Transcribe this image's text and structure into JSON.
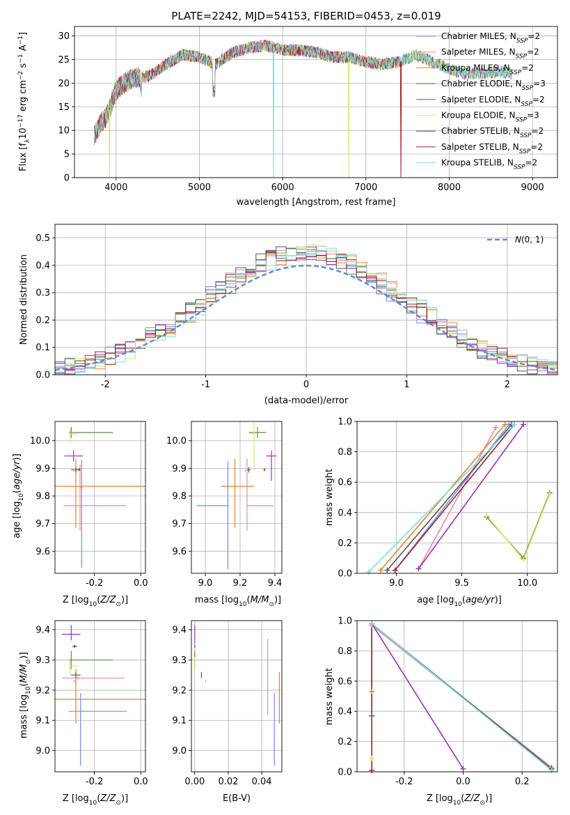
{
  "figure": {
    "title": "PLATE=2242, MJD=54153, FIBERID=0453, z=0.019"
  },
  "colors": {
    "Chabrier MILES": "#6f8fe8",
    "Salpeter MILES": "#e48ab0",
    "Kroupa MILES": "#e6822d",
    "Chabrier ELODIE": "#5b8c4f",
    "Salpeter ELODIE": "#9b30b8",
    "Kroupa ELODIE": "#d7e86a",
    "Chabrier STELIB": "#555555",
    "Salpeter STELIB": "#a01c24",
    "Kroupa STELIB": "#7fdcdc",
    "normal": "#5e8ed6"
  },
  "chart_data": [
    {
      "id": "spectrum",
      "type": "line",
      "title": "PLATE=2242, MJD=54153, FIBERID=0453, z=0.019",
      "xlabel": "wavelength [Angstrom, rest frame]",
      "ylabel": "Flux [f_λ 10^-17 erg cm^-2 s^-1 A^-1]",
      "xlim": [
        3500,
        9300
      ],
      "ylim": [
        0,
        32
      ],
      "xticks": [
        4000,
        5000,
        6000,
        7000,
        8000,
        9000
      ],
      "yticks": [
        0,
        5,
        10,
        15,
        20,
        25,
        30
      ],
      "legend_position": "top-right",
      "legend": [
        {
          "base": "Chabrier MILES",
          "n": "2"
        },
        {
          "base": "Salpeter MILES",
          "n": "2"
        },
        {
          "base": "Kroupa MILES",
          "n": "2"
        },
        {
          "base": "Chabrier ELODIE",
          "n": "3"
        },
        {
          "base": "Salpeter ELODIE",
          "n": "2"
        },
        {
          "base": "Kroupa ELODIE",
          "n": "3"
        },
        {
          "base": "Chabrier STELIB",
          "n": "2"
        },
        {
          "base": "Salpeter STELIB",
          "n": "2"
        },
        {
          "base": "Kroupa STELIB",
          "n": "2"
        }
      ],
      "continuum": [
        [
          3740,
          9
        ],
        [
          3800,
          11
        ],
        [
          3900,
          13.5
        ],
        [
          4000,
          18.5
        ],
        [
          4100,
          20
        ],
        [
          4200,
          21
        ],
        [
          4400,
          21.5
        ],
        [
          4600,
          24
        ],
        [
          4800,
          26
        ],
        [
          5000,
          25.5
        ],
        [
          5200,
          24
        ],
        [
          5400,
          26.5
        ],
        [
          5600,
          27.5
        ],
        [
          5800,
          28
        ],
        [
          6000,
          27
        ],
        [
          6200,
          27
        ],
        [
          6400,
          26.5
        ],
        [
          6600,
          25.5
        ],
        [
          6800,
          25.5
        ],
        [
          7000,
          24.5
        ],
        [
          7200,
          24
        ],
        [
          7400,
          24.5
        ],
        [
          7600,
          26
        ],
        [
          7800,
          24.5
        ],
        [
          8000,
          23
        ],
        [
          8200,
          22
        ],
        [
          8400,
          22
        ],
        [
          8600,
          22.5
        ],
        [
          8750,
          22
        ]
      ],
      "dips": [
        {
          "series": "Kroupa ELODIE",
          "x": 3920,
          "y": 0
        },
        {
          "series": "Kroupa STELIB",
          "x": 5890,
          "y": 0
        },
        {
          "series": "Kroupa ELODIE",
          "x": 6795,
          "y": 0
        },
        {
          "series": "Salpeter STELIB",
          "x": 7420,
          "y": 0
        }
      ]
    },
    {
      "id": "residuals",
      "type": "histogram",
      "xlabel": "(data-model)/error",
      "ylabel": "Normed distribution",
      "xlim": [
        -2.5,
        2.5
      ],
      "ylim": [
        0,
        0.55
      ],
      "xticks": [
        -2,
        -1,
        0,
        1,
        2
      ],
      "yticks": [
        0.0,
        0.1,
        0.2,
        0.3,
        0.4,
        0.5
      ],
      "bin_width": 0.1,
      "legend_position": "top-right",
      "normal_label": "N(0,1)",
      "normal_mean": 0,
      "normal_sigma": 1
    },
    {
      "id": "age_vs_Z",
      "type": "errorbar",
      "xlabel": "Z [log10(Z/Z⊙)]",
      "ylabel": "age [log10(age/yr)]",
      "xlim": [
        -0.37,
        0.02
      ],
      "ylim": [
        9.52,
        10.07
      ],
      "xticks": [
        -0.2,
        0.0
      ],
      "yticks": [
        9.6,
        9.7,
        9.8,
        9.9,
        10.0
      ],
      "points": [
        {
          "s": "Chabrier MILES",
          "x": -0.255,
          "xe": [
            0.005,
            0.005
          ],
          "y": 9.83,
          "ye": [
            0.29,
            0.1
          ]
        },
        {
          "s": "Salpeter MILES",
          "x": -0.262,
          "xe": [
            0.07,
            0.2
          ],
          "y": 9.765,
          "ye": [
            0.09,
            0.15
          ]
        },
        {
          "s": "Kroupa MILES",
          "x": -0.28,
          "xe": [
            0.09,
            0.3
          ],
          "y": 9.835,
          "ye": [
            0.15,
            0.1
          ]
        },
        {
          "s": "Chabrier ELODIE",
          "x": -0.3,
          "xe": [
            0.01,
            0.18
          ],
          "y": 10.03,
          "ye": [
            0.02,
            0.02
          ]
        },
        {
          "s": "Salpeter ELODIE",
          "x": -0.29,
          "xe": [
            0.04,
            0.04
          ],
          "y": 9.945,
          "ye": [
            0.02,
            0.02
          ]
        },
        {
          "s": "Kroupa ELODIE",
          "x": -0.305,
          "xe": [
            0.005,
            0.035
          ],
          "y": 10.025,
          "ye": [
            0.03,
            0.02
          ]
        },
        {
          "s": "Chabrier STELIB",
          "x": -0.28,
          "xe": [
            0.02,
            0.02
          ],
          "y": 9.895,
          "ye": [
            0.01,
            0.01
          ]
        },
        {
          "s": "Salpeter STELIB",
          "x": -0.266,
          "xe": [
            0.005,
            0.005
          ],
          "y": 9.895,
          "ye": [
            0.005,
            0.005
          ]
        },
        {
          "s": "Kroupa STELIB",
          "x": -0.286,
          "xe": [
            0.005,
            0.005
          ],
          "y": 9.892,
          "ye": [
            0.005,
            0.005
          ]
        }
      ]
    },
    {
      "id": "age_vs_mass",
      "type": "errorbar",
      "xlabel": "mass [log10(M/M⊙)]",
      "ylabel": "",
      "xlim": [
        8.92,
        9.44
      ],
      "ylim": [
        9.52,
        10.07
      ],
      "xticks": [
        9.0,
        9.2,
        9.4
      ],
      "yticks": [
        9.6,
        9.7,
        9.8,
        9.9,
        10.0
      ],
      "points": [
        {
          "s": "Chabrier MILES",
          "x": 9.13,
          "xe": [
            0.18,
            0.0
          ],
          "y": 9.765,
          "ye": [
            0.23,
            0.16
          ]
        },
        {
          "s": "Salpeter MILES",
          "x": 9.24,
          "xe": [
            0.0,
            0.15
          ],
          "y": 9.765,
          "ye": [
            0.09,
            0.17
          ]
        },
        {
          "s": "Kroupa MILES",
          "x": 9.17,
          "xe": [
            0.08,
            0.11
          ],
          "y": 9.835,
          "ye": [
            0.15,
            0.1
          ]
        },
        {
          "s": "Chabrier ELODIE",
          "x": 9.3,
          "xe": [
            0.05,
            0.05
          ],
          "y": 10.03,
          "ye": [
            0.02,
            0.02
          ]
        },
        {
          "s": "Salpeter ELODIE",
          "x": 9.38,
          "xe": [
            0.03,
            0.03
          ],
          "y": 9.945,
          "ye": [
            0.09,
            0.02
          ]
        },
        {
          "s": "Kroupa ELODIE",
          "x": 9.28,
          "xe": [
            0.01,
            0.01
          ],
          "y": 10.025,
          "ye": [
            0.13,
            0.04
          ]
        },
        {
          "s": "Chabrier STELIB",
          "x": 9.25,
          "xe": [
            0.01,
            0.01
          ],
          "y": 9.895,
          "ye": [
            0.01,
            0.01
          ]
        },
        {
          "s": "Salpeter STELIB",
          "x": 9.34,
          "xe": [
            0.005,
            0.005
          ],
          "y": 9.895,
          "ye": [
            0.005,
            0.005
          ]
        },
        {
          "s": "Kroupa STELIB",
          "x": 9.23,
          "xe": [
            0.005,
            0.005
          ],
          "y": 9.892,
          "ye": [
            0.005,
            0.005
          ]
        }
      ]
    },
    {
      "id": "weight_vs_age",
      "type": "line",
      "xlabel": "age [log10(age/yr)]",
      "ylabel": "mass weight",
      "xlim": [
        8.7,
        10.23
      ],
      "ylim": [
        0.0,
        1.0
      ],
      "xticks": [
        9.0,
        9.5,
        10.0
      ],
      "yticks": [
        0.0,
        0.2,
        0.4,
        0.6,
        0.8,
        1.0
      ],
      "series": [
        {
          "s": "Chabrier MILES",
          "points": [
            [
              8.99,
              0.02
            ],
            [
              9.86,
              0.98
            ]
          ]
        },
        {
          "s": "Salpeter MILES",
          "points": [
            [
              9.17,
              0.03
            ],
            [
              9.76,
              0.96
            ]
          ]
        },
        {
          "s": "Kroupa MILES",
          "points": [
            [
              8.88,
              0.02
            ],
            [
              9.83,
              0.98
            ]
          ]
        },
        {
          "s": "Chabrier ELODIE",
          "points": [
            [
              9.69,
              0.37
            ],
            [
              9.97,
              0.1
            ],
            [
              10.17,
              0.53
            ]
          ]
        },
        {
          "s": "Salpeter ELODIE",
          "points": [
            [
              9.17,
              0.03
            ],
            [
              9.97,
              0.98
            ]
          ]
        },
        {
          "s": "Kroupa ELODIE",
          "points": [
            [
              9.69,
              0.38
            ],
            [
              9.97,
              0.09
            ],
            [
              10.17,
              0.52
            ]
          ]
        },
        {
          "s": "Chabrier STELIB",
          "points": [
            [
              8.93,
              0.02
            ],
            [
              9.88,
              0.98
            ]
          ]
        },
        {
          "s": "Salpeter STELIB",
          "points": [
            [
              8.99,
              0.02
            ],
            [
              9.9,
              0.98
            ]
          ]
        },
        {
          "s": "Kroupa STELIB",
          "points": [
            [
              8.79,
              0.01
            ],
            [
              9.9,
              0.98
            ]
          ]
        }
      ]
    },
    {
      "id": "mass_vs_Z",
      "type": "errorbar",
      "xlabel": "Z [log10(Z/Z⊙)]",
      "ylabel": "mass [log10(M/M⊙)]",
      "xlim": [
        -0.37,
        0.02
      ],
      "ylim": [
        8.93,
        9.43
      ],
      "xticks": [
        -0.2,
        0.0
      ],
      "yticks": [
        9.0,
        9.1,
        9.2,
        9.3,
        9.4
      ],
      "points": [
        {
          "s": "Chabrier MILES",
          "x": -0.26,
          "xe": [
            0.05,
            0.2
          ],
          "y": 9.13,
          "ye": [
            0.18,
            0.06
          ]
        },
        {
          "s": "Salpeter MILES",
          "x": -0.27,
          "xe": [
            0.07,
            0.2
          ],
          "y": 9.24,
          "ye": [
            0.005,
            0.005
          ]
        },
        {
          "s": "Kroupa MILES",
          "x": -0.28,
          "xe": [
            0.09,
            0.3
          ],
          "y": 9.17,
          "ye": [
            0.08,
            0.1
          ]
        },
        {
          "s": "Chabrier ELODIE",
          "x": -0.3,
          "xe": [
            0.01,
            0.18
          ],
          "y": 9.3,
          "ye": [
            0.03,
            0.03
          ]
        },
        {
          "s": "Salpeter ELODIE",
          "x": -0.3,
          "xe": [
            0.04,
            0.04
          ],
          "y": 9.385,
          "ye": [
            0.02,
            0.03
          ]
        },
        {
          "s": "Kroupa ELODIE",
          "x": -0.305,
          "xe": [
            0.005,
            0.035
          ],
          "y": 9.28,
          "ye": [
            0.03,
            0.02
          ]
        },
        {
          "s": "Chabrier STELIB",
          "x": -0.28,
          "xe": [
            0.02,
            0.02
          ],
          "y": 9.25,
          "ye": [
            0.01,
            0.01
          ]
        },
        {
          "s": "Salpeter STELIB",
          "x": -0.285,
          "xe": [
            0.01,
            0.01
          ],
          "y": 9.345,
          "ye": [
            0.005,
            0.005
          ]
        },
        {
          "s": "Kroupa STELIB",
          "x": -0.286,
          "xe": [
            0.005,
            0.005
          ],
          "y": 9.23,
          "ye": [
            0.005,
            0.005
          ]
        }
      ]
    },
    {
      "id": "mass_vs_ebv",
      "type": "errorbar",
      "xlabel": "E(B-V)",
      "ylabel": "",
      "xlim": [
        -0.002,
        0.052
      ],
      "ylim": [
        8.93,
        9.43
      ],
      "xticks": [
        0.0,
        0.02,
        0.04
      ],
      "yticks": [
        9.0,
        9.1,
        9.2,
        9.3,
        9.4
      ],
      "points": [
        {
          "s": "Chabrier MILES",
          "x": 0.0475,
          "xe": [
            0,
            0
          ],
          "y": 9.13,
          "ye": [
            0.18,
            0.06
          ]
        },
        {
          "s": "Salpeter MILES",
          "x": 0.0435,
          "xe": [
            0,
            0
          ],
          "y": 9.24,
          "ye": [
            0.12,
            0.13
          ]
        },
        {
          "s": "Kroupa MILES",
          "x": 0.0505,
          "xe": [
            0,
            0
          ],
          "y": 9.17,
          "ye": [
            0.08,
            0.09
          ]
        },
        {
          "s": "Chabrier ELODIE",
          "x": 0.0,
          "xe": [
            0,
            0
          ],
          "y": 9.3,
          "ye": [
            0.03,
            0.03
          ]
        },
        {
          "s": "Salpeter ELODIE",
          "x": 0.0,
          "xe": [
            0,
            0
          ],
          "y": 9.385,
          "ye": [
            0.03,
            0.03
          ]
        },
        {
          "s": "Kroupa ELODIE",
          "x": 0.0,
          "xe": [
            0,
            0
          ],
          "y": 9.28,
          "ye": [
            0.03,
            0.03
          ]
        },
        {
          "s": "Chabrier STELIB",
          "x": 0.004,
          "xe": [
            0,
            0
          ],
          "y": 9.25,
          "ye": [
            0.01,
            0.01
          ]
        },
        {
          "s": "Salpeter STELIB",
          "x": 0.0,
          "xe": [
            0,
            0
          ],
          "y": 9.345,
          "ye": [
            0.005,
            0.005
          ]
        },
        {
          "s": "Kroupa STELIB",
          "x": 0.0065,
          "xe": [
            0,
            0
          ],
          "y": 9.23,
          "ye": [
            0.005,
            0.005
          ]
        }
      ]
    },
    {
      "id": "weight_vs_Z",
      "type": "line",
      "xlabel": "Z [log10(Z/Z⊙)]",
      "ylabel": "mass weight",
      "xlim": [
        -0.36,
        0.32
      ],
      "ylim": [
        0.0,
        1.0
      ],
      "xticks": [
        -0.2,
        0.0,
        0.2
      ],
      "yticks": [
        0.0,
        0.2,
        0.4,
        0.6,
        0.8,
        1.0
      ],
      "series": [
        {
          "s": "Chabrier MILES",
          "points": [
            [
              -0.31,
              0.97
            ],
            [
              0.3,
              0.02
            ]
          ]
        },
        {
          "s": "Salpeter MILES",
          "points": [
            [
              -0.31,
              0.97
            ],
            [
              0.3,
              0.03
            ]
          ]
        },
        {
          "s": "Kroupa MILES",
          "points": [
            [
              -0.31,
              0.53
            ],
            [
              -0.31,
              0.98
            ],
            [
              0.3,
              0.02
            ]
          ]
        },
        {
          "s": "Chabrier ELODIE",
          "points": [
            [
              -0.31,
              0.98
            ],
            [
              0.3,
              0.02
            ]
          ]
        },
        {
          "s": "Salpeter ELODIE",
          "points": [
            [
              -0.31,
              0.98
            ],
            [
              0.0,
              0.02
            ]
          ]
        },
        {
          "s": "Kroupa ELODIE",
          "points": [
            [
              -0.31,
              0.09
            ],
            [
              -0.31,
              0.98
            ],
            [
              0.3,
              0.01
            ]
          ]
        },
        {
          "s": "Chabrier STELIB",
          "points": [
            [
              -0.31,
              0.37
            ],
            [
              -0.31,
              0.98
            ],
            [
              0.3,
              0.02
            ]
          ]
        },
        {
          "s": "Salpeter STELIB",
          "points": [
            [
              -0.31,
              0.01
            ],
            [
              -0.31,
              0.98
            ]
          ]
        },
        {
          "s": "Kroupa STELIB",
          "points": [
            [
              -0.31,
              0.98
            ],
            [
              0.3,
              0.01
            ]
          ]
        }
      ]
    }
  ]
}
